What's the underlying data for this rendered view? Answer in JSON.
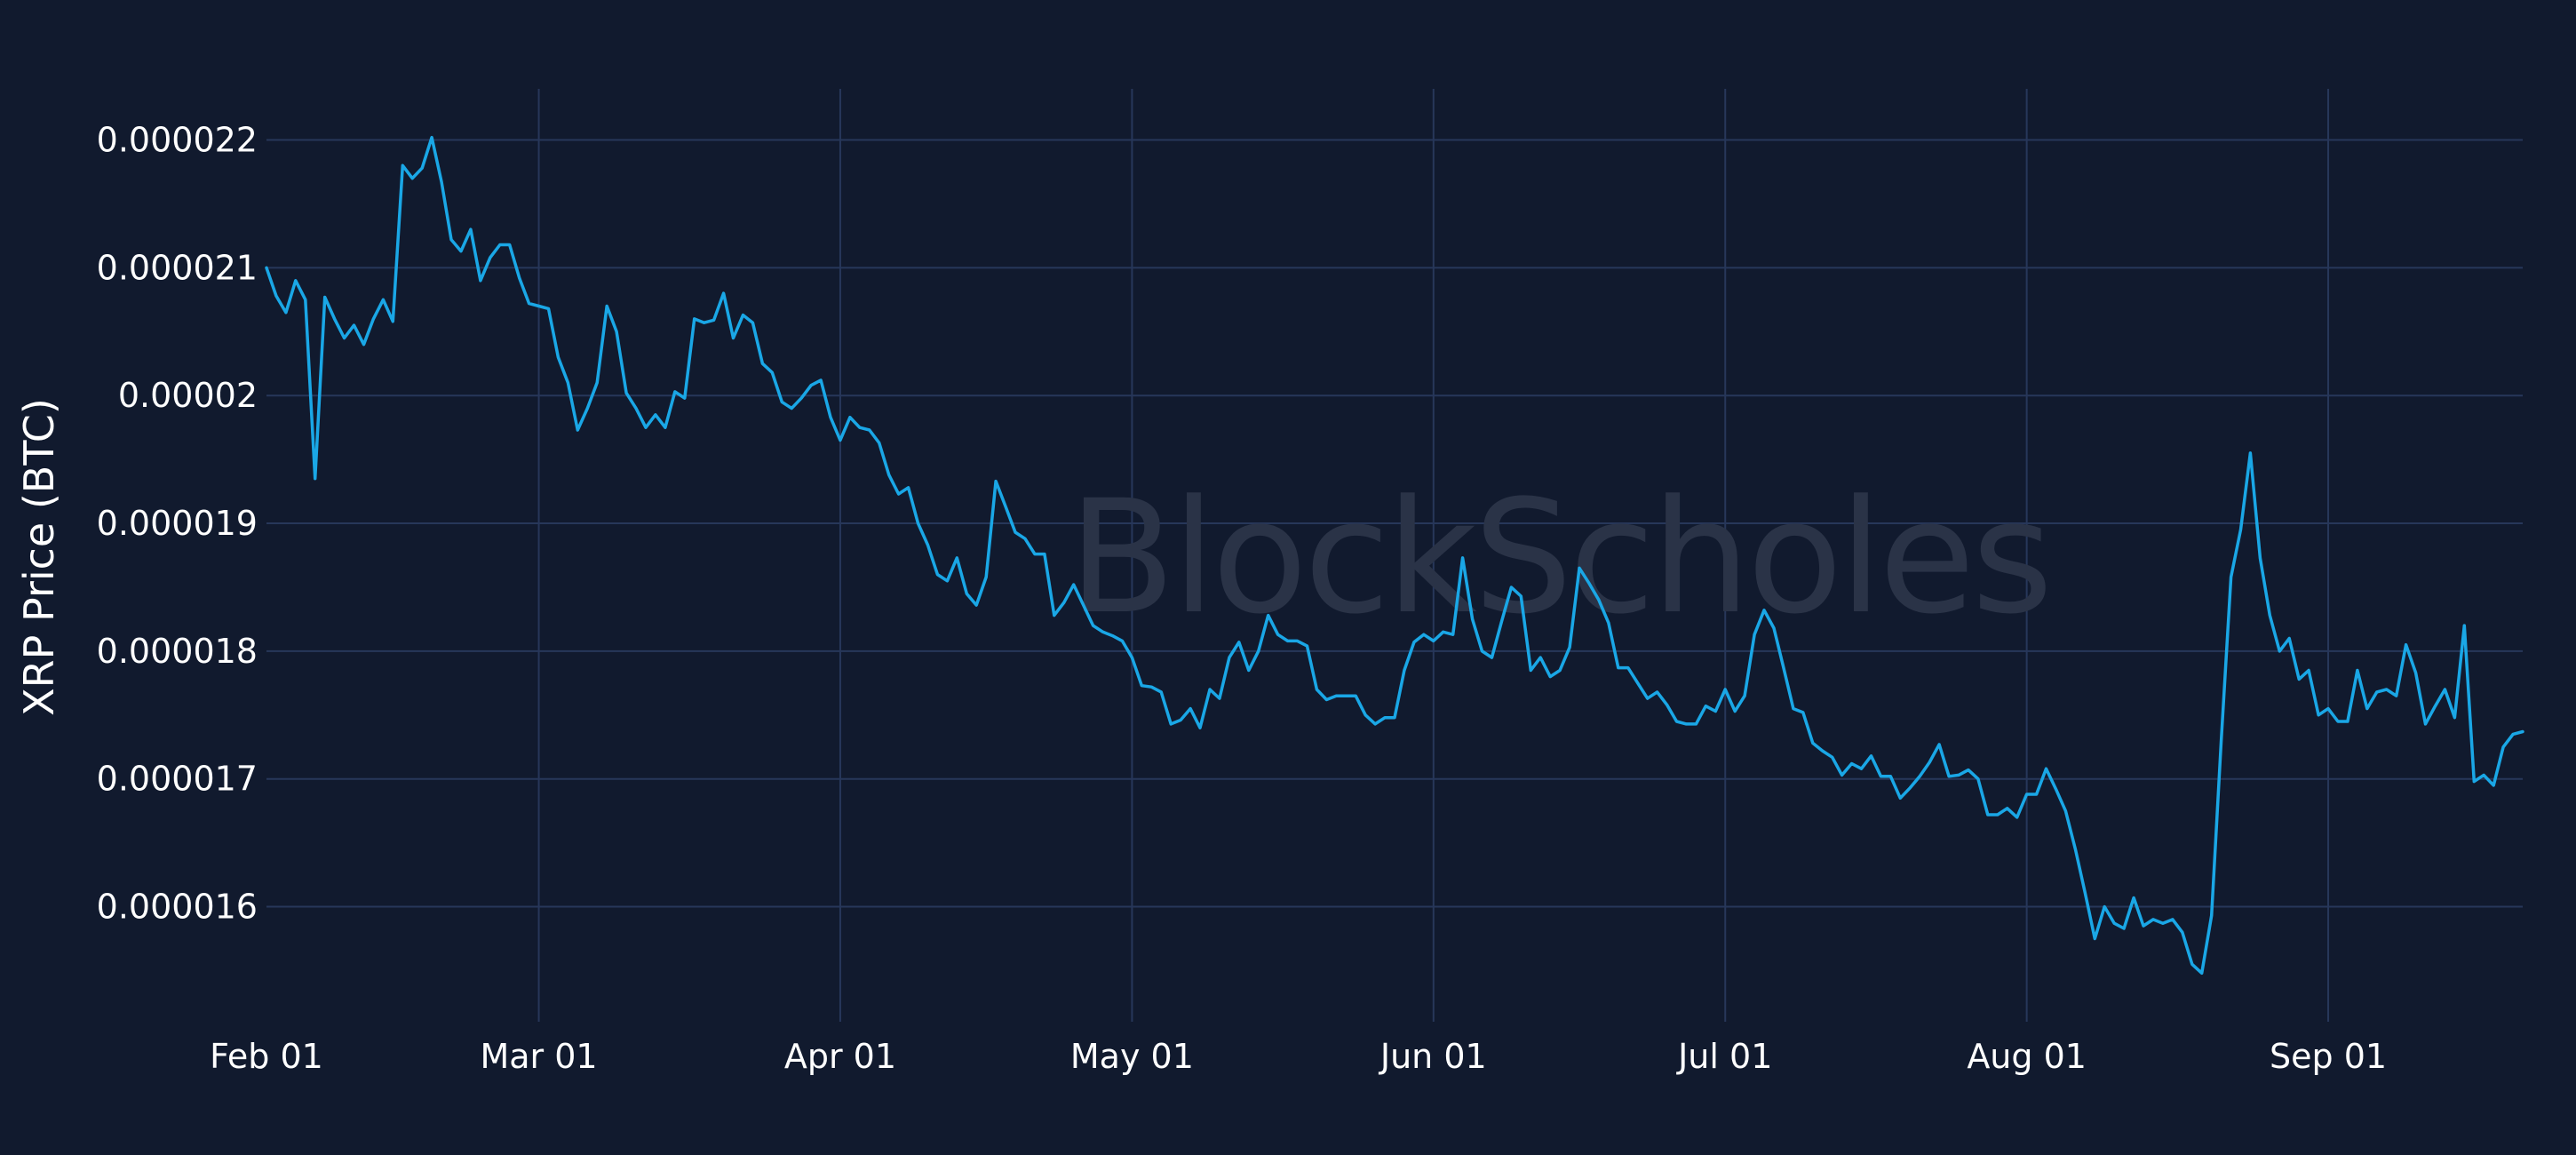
{
  "watermark": "BlockScholes",
  "colors": {
    "background": "#111a2e",
    "grid": "#27375a",
    "line": "#1aa7e6",
    "text": "#ffffff"
  },
  "chart_data": {
    "type": "line",
    "ylabel": "XRP Price (BTC)",
    "xlabel": "",
    "grid": true,
    "xlim": [
      "2023-02-01",
      "2023-09-21"
    ],
    "ylim": [
      1.51e-05,
      2.24e-05
    ],
    "x_ticks": [
      {
        "date": "2023-02-01",
        "label": "Feb 01"
      },
      {
        "date": "2023-03-01",
        "label": "Mar 01"
      },
      {
        "date": "2023-04-01",
        "label": "Apr 01"
      },
      {
        "date": "2023-05-01",
        "label": "May 01"
      },
      {
        "date": "2023-06-01",
        "label": "Jun 01"
      },
      {
        "date": "2023-07-01",
        "label": "Jul 01"
      },
      {
        "date": "2023-08-01",
        "label": "Aug 01"
      },
      {
        "date": "2023-09-01",
        "label": "Sep 01"
      }
    ],
    "y_ticks": [
      {
        "value": 1.6e-05,
        "label": "0.000016"
      },
      {
        "value": 1.7e-05,
        "label": "0.000017"
      },
      {
        "value": 1.8e-05,
        "label": "0.000018"
      },
      {
        "value": 1.9e-05,
        "label": "0.000019"
      },
      {
        "value": 2e-05,
        "label": "0.00002"
      },
      {
        "value": 2.1e-05,
        "label": "0.000021"
      },
      {
        "value": 2.2e-05,
        "label": "0.000022"
      }
    ],
    "series": [
      {
        "start_date": "2023-02-01",
        "values": [
          2.1e-05,
          2.078e-05,
          2.065e-05,
          2.09e-05,
          2.075e-05,
          1.935e-05,
          2.077e-05,
          2.06e-05,
          2.045e-05,
          2.055e-05,
          2.04e-05,
          2.06e-05,
          2.075e-05,
          2.058e-05,
          2.18e-05,
          2.17e-05,
          2.178e-05,
          2.202e-05,
          2.167e-05,
          2.122e-05,
          2.113e-05,
          2.13e-05,
          2.09e-05,
          2.108e-05,
          2.118e-05,
          2.118e-05,
          2.092e-05,
          2.072e-05,
          2.07e-05,
          2.068e-05,
          2.03e-05,
          2.01e-05,
          1.973e-05,
          1.99e-05,
          2.01e-05,
          2.07e-05,
          2.05e-05,
          2.002e-05,
          1.99e-05,
          1.975e-05,
          1.985e-05,
          1.975e-05,
          2.003e-05,
          1.998e-05,
          2.06e-05,
          2.057e-05,
          2.059e-05,
          2.08e-05,
          2.045e-05,
          2.063e-05,
          2.057e-05,
          2.025e-05,
          2.018e-05,
          1.995e-05,
          1.99e-05,
          1.998e-05,
          2.008e-05,
          2.012e-05,
          1.983e-05,
          1.965e-05,
          1.983e-05,
          1.975e-05,
          1.973e-05,
          1.963e-05,
          1.938e-05,
          1.923e-05,
          1.928e-05,
          1.9e-05,
          1.883e-05,
          1.86e-05,
          1.855e-05,
          1.873e-05,
          1.845e-05,
          1.836e-05,
          1.858e-05,
          1.933e-05,
          1.913e-05,
          1.893e-05,
          1.888e-05,
          1.876e-05,
          1.876e-05,
          1.828e-05,
          1.838e-05,
          1.852e-05,
          1.836e-05,
          1.82e-05,
          1.815e-05,
          1.812e-05,
          1.808e-05,
          1.795e-05,
          1.773e-05,
          1.772e-05,
          1.768e-05,
          1.743e-05,
          1.746e-05,
          1.755e-05,
          1.74e-05,
          1.77e-05,
          1.763e-05,
          1.795e-05,
          1.807e-05,
          1.785e-05,
          1.8e-05,
          1.828e-05,
          1.813e-05,
          1.808e-05,
          1.808e-05,
          1.804e-05,
          1.77e-05,
          1.762e-05,
          1.765e-05,
          1.765e-05,
          1.765e-05,
          1.75e-05,
          1.743e-05,
          1.748e-05,
          1.748e-05,
          1.785e-05,
          1.807e-05,
          1.813e-05,
          1.808e-05,
          1.815e-05,
          1.813e-05,
          1.873e-05,
          1.825e-05,
          1.8e-05,
          1.795e-05,
          1.823e-05,
          1.85e-05,
          1.843e-05,
          1.785e-05,
          1.795e-05,
          1.78e-05,
          1.785e-05,
          1.803e-05,
          1.865e-05,
          1.853e-05,
          1.84e-05,
          1.822e-05,
          1.787e-05,
          1.787e-05,
          1.775e-05,
          1.763e-05,
          1.768e-05,
          1.758e-05,
          1.745e-05,
          1.743e-05,
          1.743e-05,
          1.757e-05,
          1.753e-05,
          1.77e-05,
          1.753e-05,
          1.765e-05,
          1.813e-05,
          1.832e-05,
          1.818e-05,
          1.787e-05,
          1.755e-05,
          1.752e-05,
          1.728e-05,
          1.722e-05,
          1.717e-05,
          1.703e-05,
          1.712e-05,
          1.708e-05,
          1.718e-05,
          1.702e-05,
          1.702e-05,
          1.685e-05,
          1.693e-05,
          1.702e-05,
          1.713e-05,
          1.727e-05,
          1.702e-05,
          1.703e-05,
          1.707e-05,
          1.7e-05,
          1.672e-05,
          1.672e-05,
          1.677e-05,
          1.67e-05,
          1.688e-05,
          1.688e-05,
          1.708e-05,
          1.692e-05,
          1.675e-05,
          1.645e-05,
          1.611e-05,
          1.575e-05,
          1.6e-05,
          1.587e-05,
          1.583e-05,
          1.607e-05,
          1.585e-05,
          1.59e-05,
          1.587e-05,
          1.59e-05,
          1.58e-05,
          1.555e-05,
          1.548e-05,
          1.593e-05,
          1.73e-05,
          1.858e-05,
          1.895e-05,
          1.955e-05,
          1.873e-05,
          1.828e-05,
          1.8e-05,
          1.81e-05,
          1.778e-05,
          1.785e-05,
          1.75e-05,
          1.755e-05,
          1.745e-05,
          1.745e-05,
          1.785e-05,
          1.755e-05,
          1.768e-05,
          1.77e-05,
          1.765e-05,
          1.805e-05,
          1.783e-05,
          1.743e-05,
          1.757e-05,
          1.77e-05,
          1.748e-05,
          1.82e-05,
          1.698e-05,
          1.703e-05,
          1.695e-05,
          1.725e-05,
          1.735e-05,
          1.737e-05
        ]
      }
    ]
  }
}
